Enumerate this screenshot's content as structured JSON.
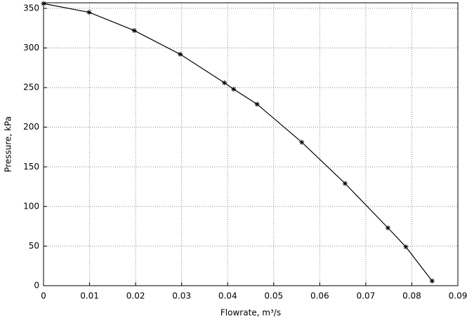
{
  "chart_data": {
    "type": "line",
    "x_label": "Flowrate, m³/s",
    "y_label": "Pressure, kPa",
    "x": [
      0,
      0.0099,
      0.0197,
      0.0297,
      0.0393,
      0.0413,
      0.0464,
      0.0561,
      0.0655,
      0.0748,
      0.0787,
      0.0844
    ],
    "values": [
      356,
      345,
      322,
      292,
      256,
      248,
      229,
      181,
      129,
      73,
      49,
      6
    ],
    "color": "#000000",
    "xlim": [
      0,
      0.09
    ],
    "xticks": [
      0,
      0.01,
      0.02,
      0.03,
      0.04,
      0.05,
      0.06,
      0.07,
      0.08,
      0.09
    ],
    "ylim": [
      0,
      357
    ],
    "yticks": [
      0,
      50,
      100,
      150,
      200,
      250,
      300,
      350
    ],
    "grid": true
  }
}
